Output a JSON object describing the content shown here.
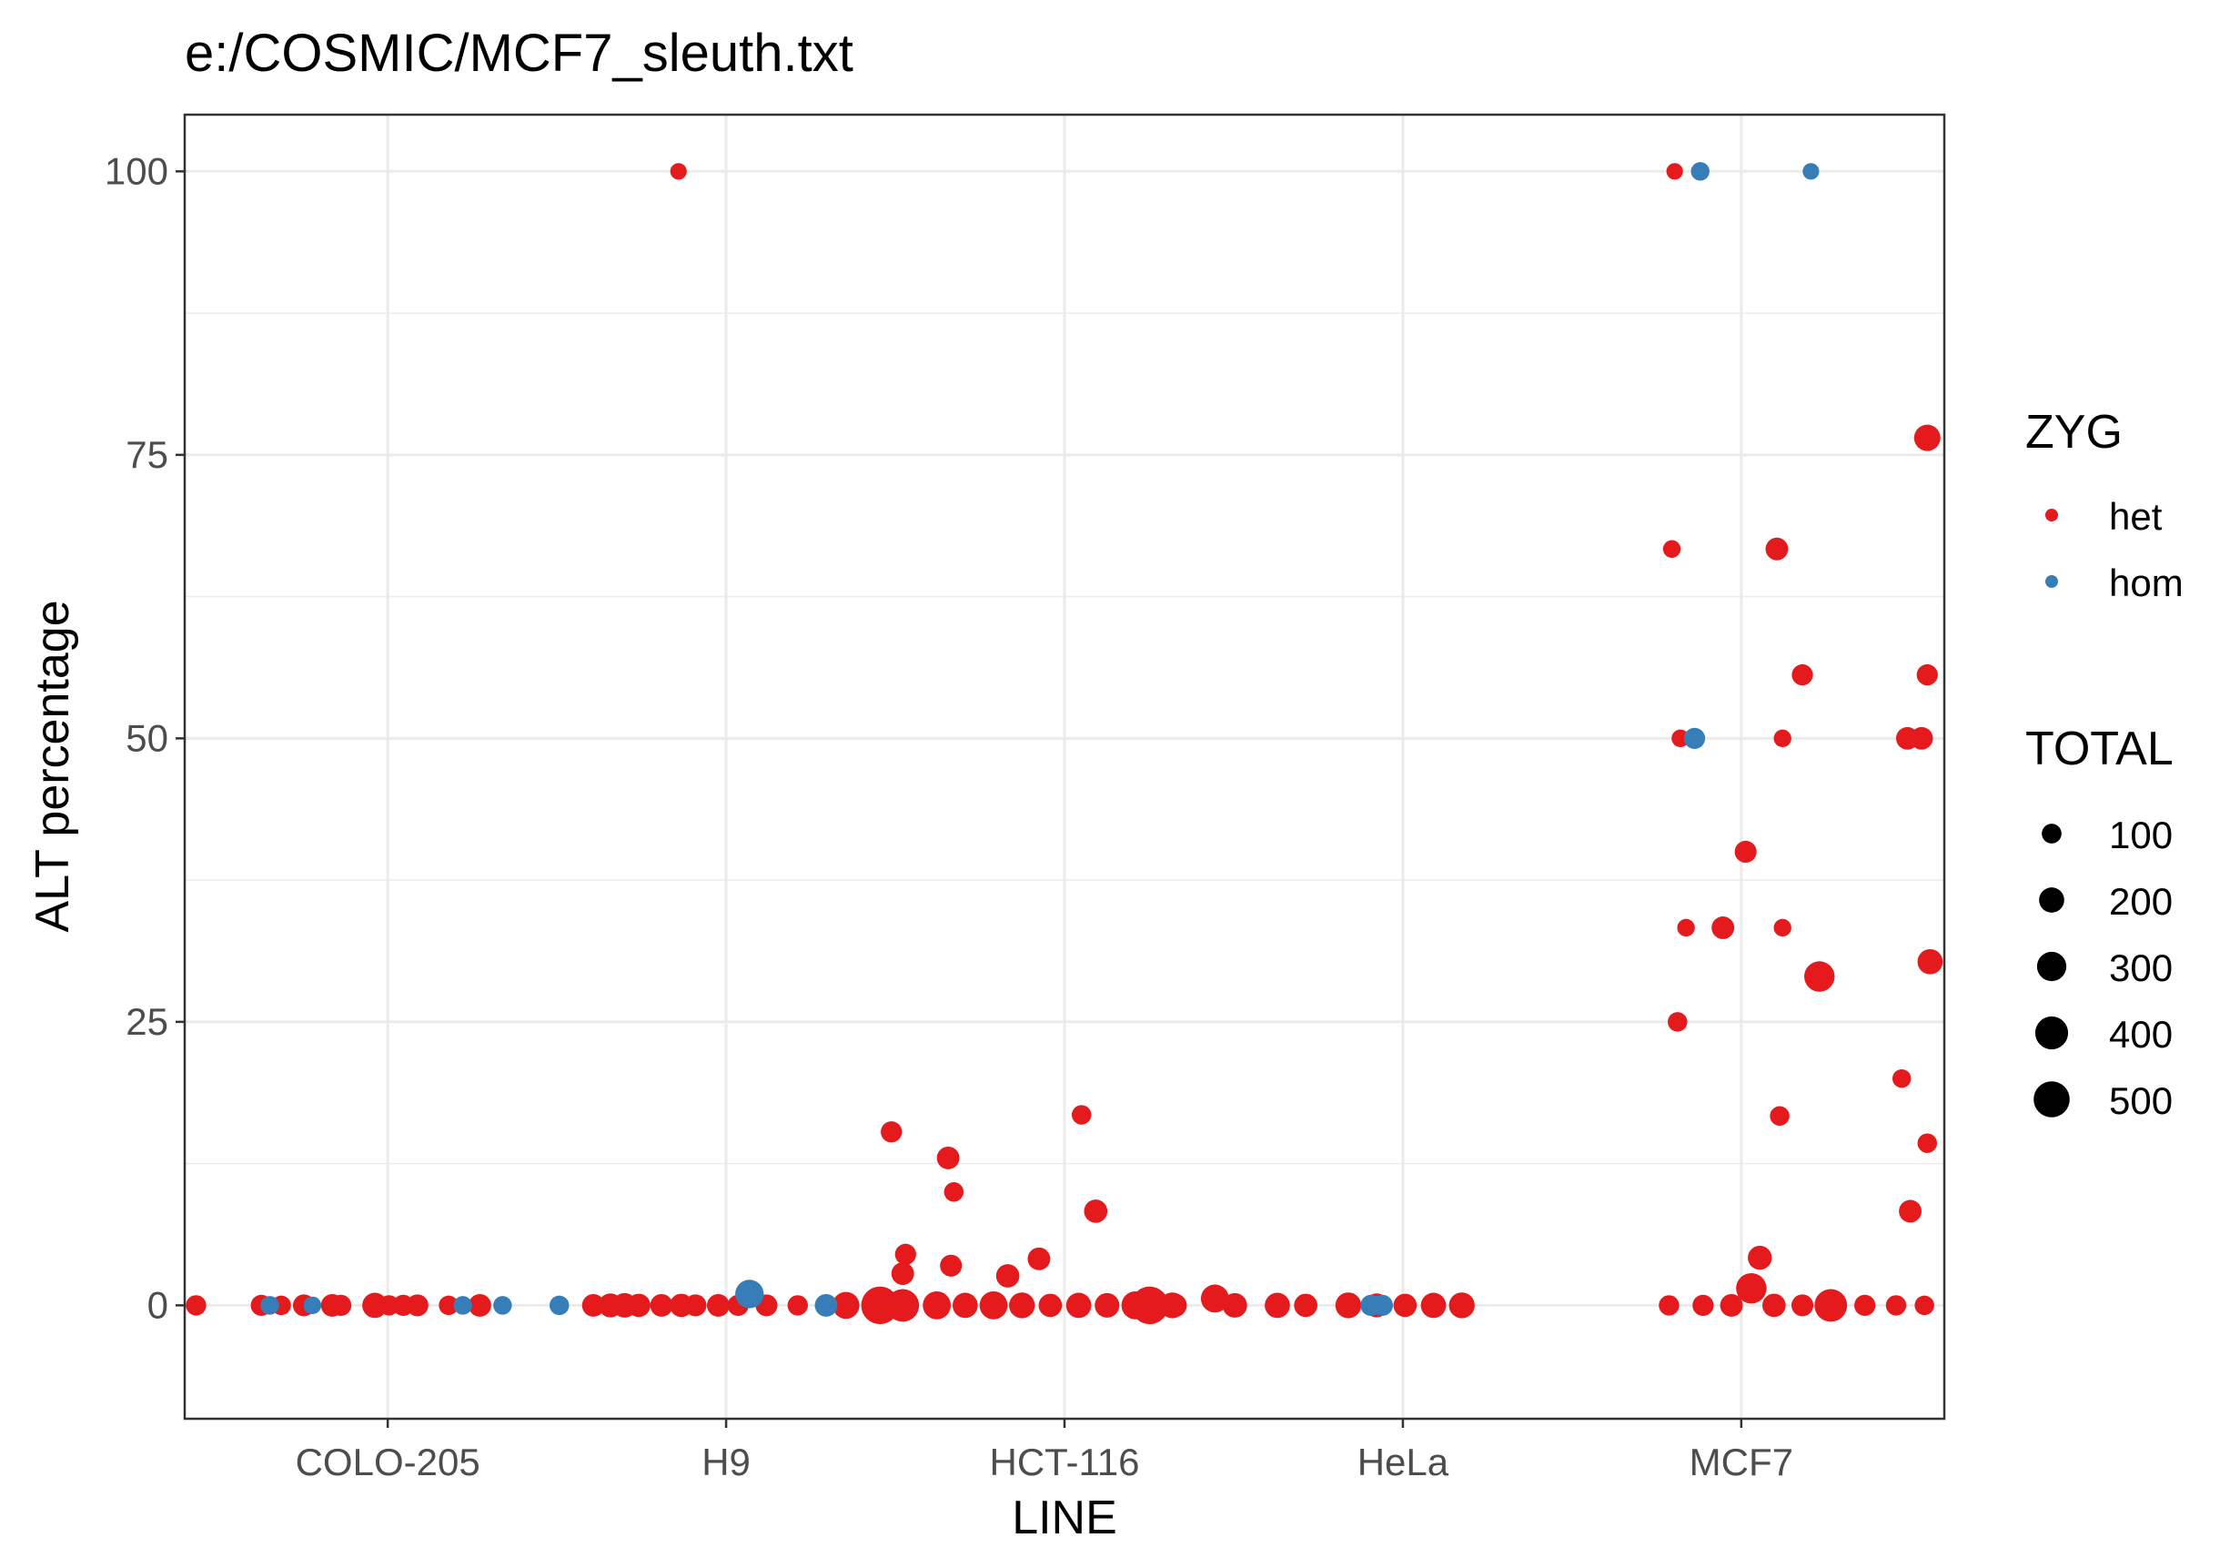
{
  "chart_data": {
    "type": "scatter",
    "title": "e:/COSMIC/MCF7_sleuth.txt",
    "xlabel": "LINE",
    "ylabel": "ALT percentage",
    "categories": [
      "COLO-205",
      "H9",
      "HCT-116",
      "HeLa",
      "MCF7"
    ],
    "ylim": [
      -10,
      105
    ],
    "yticks": [
      0,
      25,
      50,
      75,
      100
    ],
    "grid": true,
    "legend_placement": "right",
    "legend": {
      "color_title": "ZYG",
      "color_entries": [
        {
          "label": "het",
          "color": "#E41A1C"
        },
        {
          "label": "hom",
          "color": "#377EB8"
        }
      ],
      "size_title": "TOTAL",
      "size_entries": [
        100,
        200,
        300,
        400,
        500
      ]
    },
    "colors": {
      "het": "#E41A1C",
      "hom": "#377EB8"
    },
    "series": [
      {
        "name": "het",
        "points": [
          {
            "x": 0.44,
            "y": 0,
            "size": 80
          },
          {
            "x": 0.67,
            "y": 0,
            "size": 90
          },
          {
            "x": 0.74,
            "y": 0,
            "size": 70
          },
          {
            "x": 0.82,
            "y": 0,
            "size": 100
          },
          {
            "x": 0.92,
            "y": 0,
            "size": 110
          },
          {
            "x": 1.07,
            "y": 0,
            "size": 150
          },
          {
            "x": 1.17,
            "y": 0,
            "size": 90
          },
          {
            "x": 1.22,
            "y": 0,
            "size": 100
          },
          {
            "x": 1.33,
            "y": 0,
            "size": 70
          },
          {
            "x": 1.44,
            "y": 0,
            "size": 110
          },
          {
            "x": 0.95,
            "y": 0,
            "size": 90
          },
          {
            "x": 1.12,
            "y": 0,
            "size": 80
          },
          {
            "x": 1.84,
            "y": 0,
            "size": 110
          },
          {
            "x": 1.9,
            "y": 0,
            "size": 130
          },
          {
            "x": 1.95,
            "y": 0,
            "size": 140
          },
          {
            "x": 2.0,
            "y": 0,
            "size": 120
          },
          {
            "x": 2.08,
            "y": 0,
            "size": 110
          },
          {
            "x": 2.15,
            "y": 0,
            "size": 120
          },
          {
            "x": 2.2,
            "y": 0,
            "size": 100
          },
          {
            "x": 2.28,
            "y": 0,
            "size": 110
          },
          {
            "x": 2.35,
            "y": 0,
            "size": 90
          },
          {
            "x": 2.45,
            "y": 0,
            "size": 100
          },
          {
            "x": 2.56,
            "y": 0,
            "size": 80
          },
          {
            "x": 2.73,
            "y": 0,
            "size": 180
          },
          {
            "x": 2.14,
            "y": 100,
            "size": 40
          },
          {
            "x": 2.85,
            "y": 0,
            "size": 430
          },
          {
            "x": 2.93,
            "y": 0,
            "size": 300
          },
          {
            "x": 3.05,
            "y": 0,
            "size": 200
          },
          {
            "x": 3.15,
            "y": 0,
            "size": 150
          },
          {
            "x": 3.25,
            "y": 0,
            "size": 200
          },
          {
            "x": 3.35,
            "y": 0,
            "size": 160
          },
          {
            "x": 3.45,
            "y": 0,
            "size": 120
          },
          {
            "x": 3.55,
            "y": 0,
            "size": 150
          },
          {
            "x": 3.65,
            "y": 0,
            "size": 140
          },
          {
            "x": 3.75,
            "y": 0,
            "size": 200
          },
          {
            "x": 3.8,
            "y": 0,
            "size": 430
          },
          {
            "x": 3.88,
            "y": 0,
            "size": 160
          },
          {
            "x": 2.93,
            "y": 2.8,
            "size": 110
          },
          {
            "x": 2.94,
            "y": 4.5,
            "size": 90
          },
          {
            "x": 3.1,
            "y": 3.5,
            "size": 100
          },
          {
            "x": 3.3,
            "y": 2.6,
            "size": 120
          },
          {
            "x": 3.41,
            "y": 4.1,
            "size": 110
          },
          {
            "x": 2.89,
            "y": 15.3,
            "size": 90
          },
          {
            "x": 3.09,
            "y": 13.0,
            "size": 110
          },
          {
            "x": 3.11,
            "y": 10.0,
            "size": 70
          },
          {
            "x": 3.56,
            "y": 16.8,
            "size": 70
          },
          {
            "x": 3.61,
            "y": 8.3,
            "size": 120
          },
          {
            "x": 3.89,
            "y": 0,
            "size": 120
          },
          {
            "x": 4.03,
            "y": 0.6,
            "size": 200
          },
          {
            "x": 4.1,
            "y": 0,
            "size": 140
          },
          {
            "x": 4.25,
            "y": 0,
            "size": 150
          },
          {
            "x": 4.35,
            "y": 0,
            "size": 120
          },
          {
            "x": 4.5,
            "y": 0,
            "size": 160
          },
          {
            "x": 4.6,
            "y": 0,
            "size": 130
          },
          {
            "x": 4.7,
            "y": 0,
            "size": 120
          },
          {
            "x": 4.8,
            "y": 0,
            "size": 150
          },
          {
            "x": 4.9,
            "y": 0,
            "size": 160
          },
          {
            "x": 5.63,
            "y": 0,
            "size": 80
          },
          {
            "x": 5.75,
            "y": 0,
            "size": 90
          },
          {
            "x": 5.85,
            "y": 0,
            "size": 110
          },
          {
            "x": 5.92,
            "y": 1.5,
            "size": 250
          },
          {
            "x": 6.0,
            "y": 0,
            "size": 120
          },
          {
            "x": 6.1,
            "y": 0,
            "size": 100
          },
          {
            "x": 6.2,
            "y": 0,
            "size": 300
          },
          {
            "x": 6.32,
            "y": 0,
            "size": 90
          },
          {
            "x": 6.43,
            "y": 0,
            "size": 80
          },
          {
            "x": 6.53,
            "y": 0,
            "size": 70
          },
          {
            "x": 5.65,
            "y": 100,
            "size": 40
          },
          {
            "x": 5.64,
            "y": 66.7,
            "size": 50
          },
          {
            "x": 6.01,
            "y": 66.7,
            "size": 110
          },
          {
            "x": 6.54,
            "y": 76.5,
            "size": 170
          },
          {
            "x": 6.1,
            "y": 55.6,
            "size": 90
          },
          {
            "x": 6.54,
            "y": 55.6,
            "size": 90
          },
          {
            "x": 5.67,
            "y": 50,
            "size": 50
          },
          {
            "x": 6.03,
            "y": 50,
            "size": 50
          },
          {
            "x": 6.47,
            "y": 50,
            "size": 110
          },
          {
            "x": 6.52,
            "y": 50,
            "size": 110
          },
          {
            "x": 5.9,
            "y": 40,
            "size": 100
          },
          {
            "x": 5.69,
            "y": 33.3,
            "size": 50
          },
          {
            "x": 5.82,
            "y": 33.3,
            "size": 110
          },
          {
            "x": 6.03,
            "y": 33.3,
            "size": 50
          },
          {
            "x": 6.16,
            "y": 29,
            "size": 250
          },
          {
            "x": 6.55,
            "y": 30.3,
            "size": 150
          },
          {
            "x": 5.66,
            "y": 25,
            "size": 70
          },
          {
            "x": 6.45,
            "y": 20,
            "size": 60
          },
          {
            "x": 6.02,
            "y": 16.7,
            "size": 70
          },
          {
            "x": 6.54,
            "y": 14.3,
            "size": 70
          },
          {
            "x": 6.48,
            "y": 8.3,
            "size": 110
          },
          {
            "x": 5.95,
            "y": 4.2,
            "size": 130
          }
        ]
      },
      {
        "name": "hom",
        "points": [
          {
            "x": 0.7,
            "y": 0,
            "size": 60
          },
          {
            "x": 0.85,
            "y": 0,
            "size": 50
          },
          {
            "x": 1.38,
            "y": 0,
            "size": 60
          },
          {
            "x": 1.52,
            "y": 0,
            "size": 60
          },
          {
            "x": 1.72,
            "y": 0,
            "size": 70
          },
          {
            "x": 2.39,
            "y": 1.0,
            "size": 210
          },
          {
            "x": 2.66,
            "y": 0,
            "size": 110
          },
          {
            "x": 4.58,
            "y": 0,
            "size": 90
          },
          {
            "x": 4.62,
            "y": 0,
            "size": 90
          },
          {
            "x": 5.74,
            "y": 100,
            "size": 60
          },
          {
            "x": 6.13,
            "y": 100,
            "size": 40
          },
          {
            "x": 5.72,
            "y": 50,
            "size": 90
          }
        ]
      }
    ]
  }
}
